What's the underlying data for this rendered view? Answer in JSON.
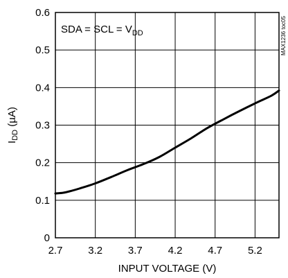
{
  "chart_data": {
    "type": "line",
    "xlabel": "INPUT VOLTAGE (V)",
    "ylabel_main": "I",
    "ylabel_sub": "DD",
    "ylabel_unit": " (µA)",
    "xlim": [
      2.7,
      5.5
    ],
    "ylim": [
      0,
      0.6
    ],
    "x_ticks": [
      2.7,
      3.2,
      3.7,
      4.2,
      4.7,
      5.2
    ],
    "x_tick_labels": [
      "2.7",
      "3.2",
      "3.7",
      "4.2",
      "4.7",
      "5.2"
    ],
    "y_ticks": [
      0,
      0.1,
      0.2,
      0.3,
      0.4,
      0.5,
      0.6
    ],
    "y_tick_labels": [
      "0",
      "0.1",
      "0.2",
      "0.3",
      "0.4",
      "0.5",
      "0.6"
    ],
    "grid": true,
    "annotation": {
      "main": "SDA = SCL = V",
      "sub": "DD"
    },
    "watermark": "MAX1236 toc05",
    "line_color": "#000000",
    "series": [
      {
        "x": [
          2.7,
          2.8,
          2.9,
          3.0,
          3.2,
          3.4,
          3.6,
          3.8,
          4.0,
          4.2,
          4.4,
          4.6,
          4.8,
          5.0,
          5.2,
          5.4,
          5.5
        ],
        "y": [
          0.118,
          0.12,
          0.125,
          0.131,
          0.145,
          0.162,
          0.18,
          0.196,
          0.215,
          0.24,
          0.265,
          0.292,
          0.315,
          0.337,
          0.358,
          0.378,
          0.392
        ]
      }
    ]
  }
}
